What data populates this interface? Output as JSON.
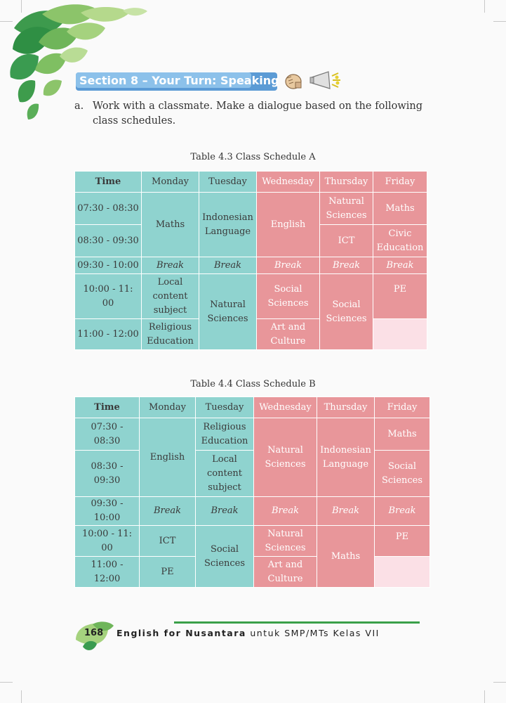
{
  "section": {
    "title": "Section 8 – Your Turn: Speaking"
  },
  "instruction": {
    "marker": "a.",
    "text": "Work with a classmate. Make a dialogue based on the following class schedules."
  },
  "table_a": {
    "caption": "Table 4.3 Class Schedule A",
    "headers": [
      "Time",
      "Monday",
      "Tuesday",
      "Wednesday",
      "Thursday",
      "Friday"
    ],
    "times": [
      "07:30 - 08:30",
      "08:30 - 09:30",
      "09:30 - 10:00",
      "10:00 - 11: 00",
      "11:00 - 12:00"
    ],
    "break": "Break",
    "mon_1": "Maths",
    "mon_4": "Local content subject",
    "mon_5": "Religious Education",
    "tue_1": "Indonesian Language",
    "tue_4": "Natural Sciences",
    "wed_1": "English",
    "wed_4": "Social Sciences",
    "wed_5": "Art and Culture",
    "thu_1": "Natural Sciences",
    "thu_2": "ICT",
    "thu_4": "Social Sciences",
    "fri_1": "Maths",
    "fri_2": "Civic Education",
    "fri_4": "PE"
  },
  "table_b": {
    "caption": "Table 4.4 Class Schedule B",
    "headers": [
      "Time",
      "Monday",
      "Tuesday",
      "Wednesday",
      "Thursday",
      "Friday"
    ],
    "times": [
      "07:30 - 08:30",
      "08:30 - 09:30",
      "09:30 - 10:00",
      "10:00 - 11: 00",
      "11:00 - 12:00"
    ],
    "break": "Break",
    "mon_1": "English",
    "mon_4": "ICT",
    "mon_5": "PE",
    "tue_1": "Religious Education",
    "tue_2": "Local content subject",
    "tue_4": "Social Sciences",
    "wed_1": "Natural Sciences",
    "wed_4": "Natural Sciences",
    "wed_5": "Art and Culture",
    "thu_1": "Indonesian Language",
    "thu_4": "Maths",
    "fri_1": "Maths",
    "fri_2": "Social Sciences",
    "fri_4": "PE"
  },
  "footer": {
    "page_number": "168",
    "book_title_bold": "English for Nusantara",
    "book_title_rest": " untuk SMP/MTs Kelas VII"
  },
  "colors": {
    "teal": "#8fd3cf",
    "pink": "#e8969a",
    "light_pink": "#fbe0e6",
    "section_blue": "#5b9bd5",
    "footer_green": "#3aa049"
  }
}
